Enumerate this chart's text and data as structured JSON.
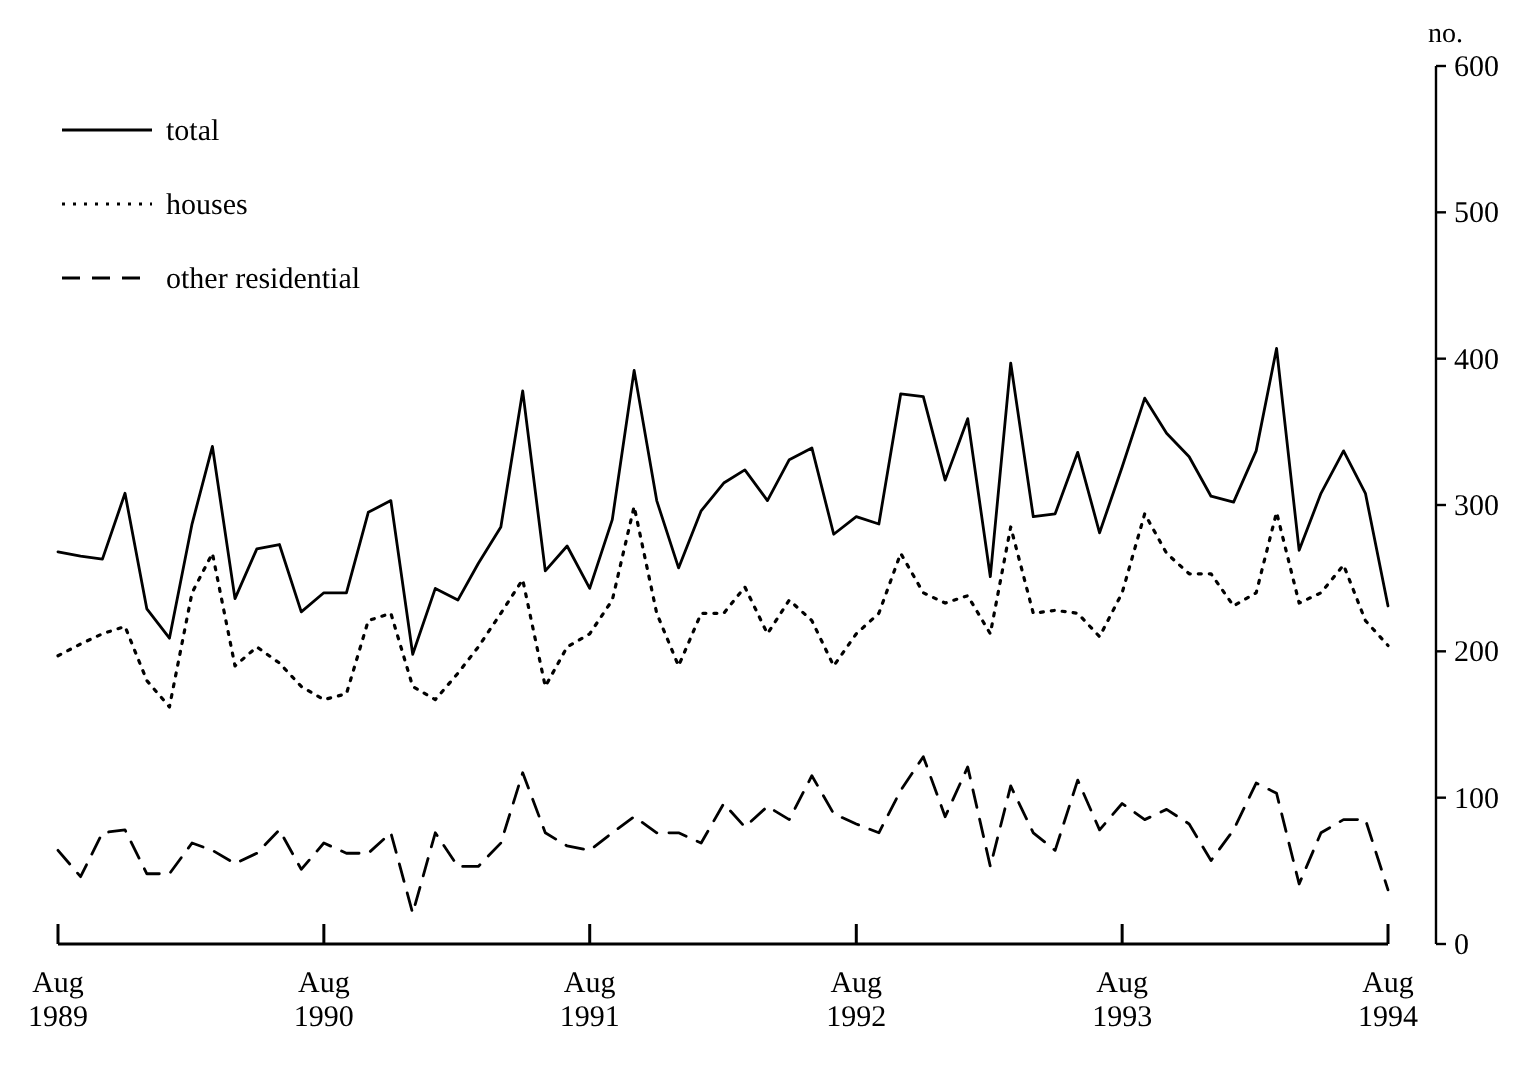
{
  "chart_data": {
    "type": "line",
    "ylabel": "no.",
    "legend": "top left",
    "marker": "none",
    "grid": false,
    "x": [
      "1989-08",
      "1989-09",
      "1989-10",
      "1989-11",
      "1989-12",
      "1990-01",
      "1990-02",
      "1990-03",
      "1990-04",
      "1990-05",
      "1990-06",
      "1990-07",
      "1990-08",
      "1990-09",
      "1990-10",
      "1990-11",
      "1990-12",
      "1991-01",
      "1991-02",
      "1991-03",
      "1991-04",
      "1991-05",
      "1991-06",
      "1991-07",
      "1991-08",
      "1991-09",
      "1991-10",
      "1991-11",
      "1991-12",
      "1992-01",
      "1992-02",
      "1992-03",
      "1992-04",
      "1992-05",
      "1992-06",
      "1992-07",
      "1992-08",
      "1992-09",
      "1992-10",
      "1992-11",
      "1992-12",
      "1993-01",
      "1993-02",
      "1993-03",
      "1993-04",
      "1993-05",
      "1993-06",
      "1993-07",
      "1993-08",
      "1993-09",
      "1993-10",
      "1993-11",
      "1993-12",
      "1994-01",
      "1994-02",
      "1994-03",
      "1994-04",
      "1994-05",
      "1994-06",
      "1994-07",
      "1994-08"
    ],
    "xlim": [
      "1989-08",
      "1994-08"
    ],
    "xticks": [
      {
        "value": "1989-08",
        "label": "Aug 1989"
      },
      {
        "value": "1990-08",
        "label": "Aug 1990"
      },
      {
        "value": "1991-08",
        "label": "Aug 1991"
      },
      {
        "value": "1992-08",
        "label": "Aug 1992"
      },
      {
        "value": "1993-08",
        "label": "Aug 1993"
      },
      {
        "value": "1994-08",
        "label": "Aug 1994"
      }
    ],
    "ylim": [
      0,
      600
    ],
    "yticks": [
      0,
      100,
      200,
      300,
      400,
      500,
      600
    ],
    "series": [
      {
        "name": "total",
        "color": "#000000",
        "line_style": "solid",
        "values": [
          268,
          265,
          263,
          308,
          229,
          209,
          287,
          340,
          236,
          270,
          273,
          227,
          240,
          240,
          295,
          303,
          198,
          243,
          235,
          260,
          285,
          378,
          255,
          272,
          243,
          290,
          392,
          303,
          257,
          296,
          315,
          324,
          303,
          331,
          339,
          280,
          292,
          287,
          376,
          374,
          317,
          359,
          251,
          397,
          292,
          294,
          336,
          281,
          326,
          373,
          349,
          333,
          306,
          302,
          337,
          407,
          269,
          308,
          337,
          308,
          231
        ]
      },
      {
        "name": "houses",
        "color": "#000000",
        "line_style": "dotted",
        "values": [
          197,
          205,
          212,
          217,
          180,
          162,
          240,
          267,
          190,
          203,
          192,
          176,
          167,
          171,
          221,
          226,
          176,
          167,
          185,
          203,
          226,
          249,
          176,
          203,
          212,
          235,
          299,
          226,
          190,
          226,
          226,
          244,
          212,
          235,
          221,
          190,
          212,
          226,
          267,
          240,
          233,
          238,
          212,
          285,
          226,
          228,
          226,
          210,
          240,
          294,
          267,
          253,
          253,
          231,
          240,
          295,
          233,
          240,
          259,
          221,
          204
        ]
      },
      {
        "name": "other residential",
        "color": "#000000",
        "line_style": "dashed",
        "values": [
          64,
          46,
          76,
          78,
          48,
          48,
          69,
          64,
          55,
          62,
          78,
          51,
          69,
          62,
          62,
          76,
          21,
          76,
          53,
          53,
          69,
          117,
          76,
          67,
          64,
          76,
          87,
          76,
          76,
          69,
          96,
          80,
          94,
          85,
          115,
          89,
          82,
          76,
          105,
          128,
          87,
          121,
          53,
          108,
          76,
          64,
          112,
          78,
          96,
          85,
          92,
          82,
          57,
          78,
          110,
          103,
          41,
          76,
          85,
          85,
          37
        ]
      }
    ]
  }
}
